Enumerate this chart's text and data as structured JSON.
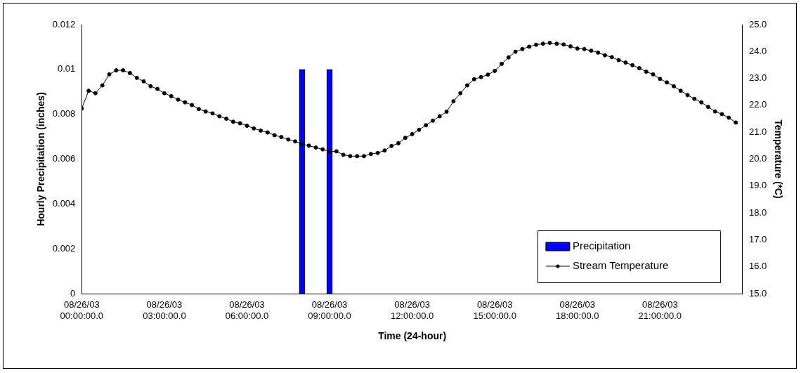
{
  "chart_data": {
    "type": "bar",
    "xlabel": "Time (24-hour)",
    "ylabel": "Hourly Precipitation (inches)",
    "y2label": "Temperature (*C)",
    "xlim": [
      "--08-26T00:00",
      "--08-27T00:00"
    ],
    "xticks": [
      {
        "value": "--08-26T00:00",
        "label": "08/26/03 00:00:00.0"
      },
      {
        "value": "--08-26T03:00",
        "label": "08/26/03 03:00:00.0"
      },
      {
        "value": "--08-26T06:00",
        "label": "08/26/03 06:00:00.0"
      },
      {
        "value": "--08-26T09:00",
        "label": "08/26/03 09:00:00.0"
      },
      {
        "value": "--08-26T12:00",
        "label": "08/26/03 12:00:00.0"
      },
      {
        "value": "--08-26T15:00",
        "label": "08/26/03 15:00:00.0"
      },
      {
        "value": "--08-26T18:00",
        "label": "08/26/03 18:00:00.0"
      },
      {
        "value": "--08-26T21:00",
        "label": "08/26/03 21:00:00.0"
      }
    ],
    "ylim": [
      0,
      0.012
    ],
    "yticks": [
      0,
      0.002,
      0.004,
      0.006,
      0.008,
      0.01,
      0.012
    ],
    "y2lim": [
      15,
      25
    ],
    "y2ticks": [
      {
        "value": 15,
        "label": "15.0"
      },
      {
        "value": 16,
        "label": "16.0"
      },
      {
        "value": 17,
        "label": "17.0"
      },
      {
        "value": 18,
        "label": "18.0"
      },
      {
        "value": 19,
        "label": "19.0"
      },
      {
        "value": 20,
        "label": "20.0"
      },
      {
        "value": 21,
        "label": "21.0"
      },
      {
        "value": 22,
        "label": "22.0"
      },
      {
        "value": 23,
        "label": "23.0"
      },
      {
        "value": 24,
        "label": "24.0"
      },
      {
        "value": 25,
        "label": "25.0"
      }
    ],
    "grid": false,
    "legend": "bottom right",
    "series": [
      {
        "name": "Precipitation",
        "type": "bar",
        "color": "#0000ff",
        "x": [
          "--08-26T08:00",
          "--08-26T09:00"
        ],
        "values": [
          0.01,
          0.01
        ]
      },
      {
        "name": "Stream Temperature",
        "type": "line",
        "axis": "y2",
        "color": "#000000",
        "marker": "circle",
        "line_style": "solid",
        "x": [
          "--08-26T00:00",
          "--08-26T00:15",
          "--08-26T00:30",
          "--08-26T00:45",
          "--08-26T01:00",
          "--08-26T01:15",
          "--08-26T01:30",
          "--08-26T01:45",
          "--08-26T02:00",
          "--08-26T02:15",
          "--08-26T02:30",
          "--08-26T02:45",
          "--08-26T03:00",
          "--08-26T03:15",
          "--08-26T03:30",
          "--08-26T03:45",
          "--08-26T04:00",
          "--08-26T04:15",
          "--08-26T04:30",
          "--08-26T04:45",
          "--08-26T05:00",
          "--08-26T05:15",
          "--08-26T05:30",
          "--08-26T05:45",
          "--08-26T06:00",
          "--08-26T06:15",
          "--08-26T06:30",
          "--08-26T06:45",
          "--08-26T07:00",
          "--08-26T07:15",
          "--08-26T07:30",
          "--08-26T07:45",
          "--08-26T08:00",
          "--08-26T08:15",
          "--08-26T08:30",
          "--08-26T08:45",
          "--08-26T09:00",
          "--08-26T09:15",
          "--08-26T09:30",
          "--08-26T09:45",
          "--08-26T10:00",
          "--08-26T10:15",
          "--08-26T10:30",
          "--08-26T10:45",
          "--08-26T11:00",
          "--08-26T11:15",
          "--08-26T11:30",
          "--08-26T11:45",
          "--08-26T12:00",
          "--08-26T12:15",
          "--08-26T12:30",
          "--08-26T12:45",
          "--08-26T13:00",
          "--08-26T13:15",
          "--08-26T13:30",
          "--08-26T13:45",
          "--08-26T14:00",
          "--08-26T14:15",
          "--08-26T14:30",
          "--08-26T14:45",
          "--08-26T15:00",
          "--08-26T15:15",
          "--08-26T15:30",
          "--08-26T15:45",
          "--08-26T16:00",
          "--08-26T16:15",
          "--08-26T16:30",
          "--08-26T16:45",
          "--08-26T17:00",
          "--08-26T17:15",
          "--08-26T17:30",
          "--08-26T17:45",
          "--08-26T18:00",
          "--08-26T18:15",
          "--08-26T18:30",
          "--08-26T18:45",
          "--08-26T19:00",
          "--08-26T19:15",
          "--08-26T19:30",
          "--08-26T19:45",
          "--08-26T20:00",
          "--08-26T20:15",
          "--08-26T20:30",
          "--08-26T20:45",
          "--08-26T21:00",
          "--08-26T21:15",
          "--08-26T21:30",
          "--08-26T21:45",
          "--08-26T22:00",
          "--08-26T22:15",
          "--08-26T22:30",
          "--08-26T22:45",
          "--08-26T23:00",
          "--08-26T23:15",
          "--08-26T23:30",
          "--08-26T23:45"
        ],
        "values": [
          21.88,
          22.54,
          22.45,
          22.74,
          23.15,
          23.3,
          23.3,
          23.2,
          23.02,
          22.89,
          22.71,
          22.61,
          22.45,
          22.34,
          22.21,
          22.11,
          22.01,
          21.86,
          21.77,
          21.7,
          21.59,
          21.5,
          21.39,
          21.33,
          21.24,
          21.14,
          21.06,
          20.99,
          20.89,
          20.82,
          20.73,
          20.66,
          20.56,
          20.5,
          20.43,
          20.36,
          20.28,
          20.29,
          20.16,
          20.11,
          20.11,
          20.11,
          20.19,
          20.23,
          20.32,
          20.49,
          20.59,
          20.79,
          20.93,
          21.09,
          21.26,
          21.43,
          21.59,
          21.76,
          22.15,
          22.45,
          22.74,
          22.97,
          23.05,
          23.14,
          23.28,
          23.54,
          23.78,
          23.99,
          24.09,
          24.18,
          24.25,
          24.29,
          24.32,
          24.29,
          24.26,
          24.19,
          24.11,
          24.09,
          24.03,
          23.96,
          23.86,
          23.79,
          23.68,
          23.59,
          23.49,
          23.38,
          23.25,
          23.15,
          22.98,
          22.85,
          22.71,
          22.54,
          22.38,
          22.24,
          22.11,
          21.94,
          21.77,
          21.67,
          21.54,
          21.36
        ]
      }
    ]
  }
}
